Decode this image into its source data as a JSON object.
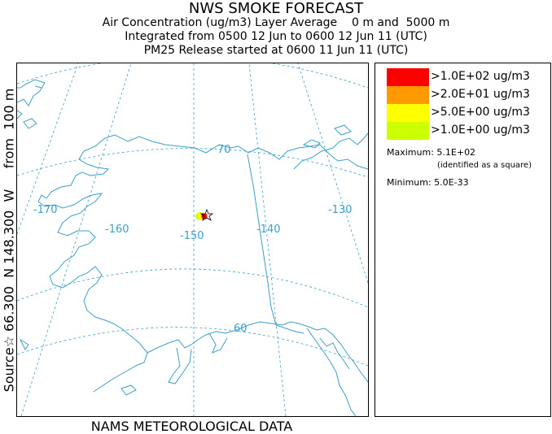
{
  "header": {
    "title": "NWS SMOKE FORECAST",
    "line2": "Air Concentration (ug/m3) Layer Average    0 m and  5000 m",
    "line3": "Integrated from 0500 12 Jun to 0600 12 Jun 11 (UTC)",
    "line4": "PM25 Release started at 0600 11 Jun 11 (UTC)"
  },
  "side_label": "Source☆ 66.300  N 148.300  W     from  100 m",
  "bottom_label": "NAMS METEOROLOGICAL DATA",
  "map": {
    "longitude_labels": [
      "-170",
      "-160",
      "-150",
      "-140",
      "-130"
    ],
    "latitude_labels": [
      "70",
      "60"
    ],
    "line_color": "#3a9fc9",
    "source_marker": "star-icon"
  },
  "legend": {
    "items": [
      {
        "label": ">1.0E+02 ug/m3",
        "color": "#ff0000"
      },
      {
        "label": ">2.0E+01 ug/m3",
        "color": "#ff9900"
      },
      {
        "label": ">5.0E+00 ug/m3",
        "color": "#ffff00"
      },
      {
        "label": ">1.0E+00 ug/m3",
        "color": "#ccff00"
      }
    ],
    "maximum": "Maximum: 5.1E+02",
    "maximum_note": "(identified as a square)",
    "minimum": "Minimum: 5.0E-33"
  }
}
